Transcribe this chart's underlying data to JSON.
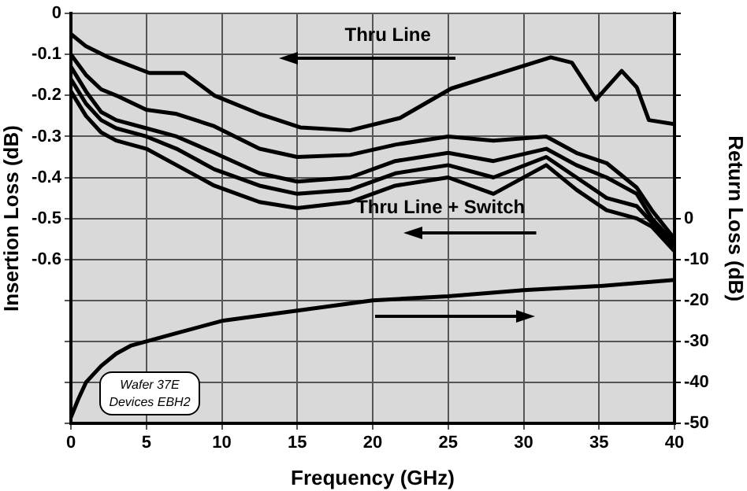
{
  "chart_data": {
    "type": "line",
    "xlabel": "Frequency (GHz)",
    "ylabel": "Insertion Loss (dB)",
    "y2label": "Return Loss (dB)",
    "xlim": [
      0,
      40
    ],
    "xticks": [
      0,
      5,
      10,
      15,
      20,
      25,
      30,
      35,
      40
    ],
    "ylim": [
      -1,
      0
    ],
    "yticks": [
      0,
      -0.1,
      -0.2,
      -0.3,
      -0.4,
      -0.5,
      -0.6,
      {
        "value": -0.7,
        "label": null
      },
      {
        "value": -0.8,
        "label": null
      },
      {
        "value": -0.9,
        "label": null
      },
      {
        "value": -1,
        "label": null
      }
    ],
    "y2lim": [
      -50,
      50
    ],
    "y2ticks": [
      {
        "value": 50,
        "label": null
      },
      {
        "value": 40,
        "label": null
      },
      {
        "value": 30,
        "label": null
      },
      {
        "value": 20,
        "label": null
      },
      {
        "value": 10,
        "label": null
      },
      0,
      -10,
      -20,
      -30,
      -40,
      -50
    ],
    "grid": true,
    "legend": false,
    "marker": "none",
    "line_style": "solid",
    "series": [
      {
        "color": "#000000",
        "x": [
          0,
          1,
          2.5,
          5.2,
          7.5,
          9.5,
          12.5,
          15.2,
          18.5,
          21.8,
          25.2,
          28.5,
          31.8,
          33.2,
          34.8,
          36.5,
          37.5,
          38.3,
          40
        ],
        "values": [
          -0.05,
          -0.08,
          -0.107,
          -0.145,
          -0.145,
          -0.2,
          -0.245,
          -0.278,
          -0.285,
          -0.255,
          -0.183,
          -0.145,
          -0.107,
          -0.12,
          -0.21,
          -0.14,
          -0.18,
          -0.26,
          -0.27
        ]
      },
      {
        "color": "#000000",
        "x": [
          0,
          1,
          2,
          3,
          5,
          7,
          9.5,
          12.5,
          15,
          18.5,
          21.5,
          25,
          28,
          31.5,
          33.5,
          35.5,
          37.5,
          38.5,
          40
        ],
        "values": [
          -0.1,
          -0.15,
          -0.185,
          -0.2,
          -0.235,
          -0.245,
          -0.275,
          -0.33,
          -0.35,
          -0.345,
          -0.32,
          -0.3,
          -0.31,
          -0.3,
          -0.34,
          -0.365,
          -0.425,
          -0.48,
          -0.55
        ]
      },
      {
        "color": "#000000",
        "x": [
          0,
          1,
          2,
          3,
          5,
          7,
          9.5,
          12.5,
          15,
          18.5,
          21.5,
          25,
          28,
          31.5,
          33.5,
          35.5,
          37.5,
          38.5,
          40
        ],
        "values": [
          -0.13,
          -0.19,
          -0.24,
          -0.26,
          -0.28,
          -0.3,
          -0.34,
          -0.39,
          -0.41,
          -0.4,
          -0.36,
          -0.34,
          -0.36,
          -0.33,
          -0.37,
          -0.4,
          -0.44,
          -0.5,
          -0.56
        ]
      },
      {
        "color": "#000000",
        "x": [
          0,
          1,
          2,
          3,
          5,
          7,
          9.5,
          12.5,
          15,
          18.5,
          21.5,
          25,
          28,
          31.5,
          33.5,
          35.5,
          37.5,
          38.5,
          40
        ],
        "values": [
          -0.16,
          -0.22,
          -0.26,
          -0.28,
          -0.3,
          -0.33,
          -0.38,
          -0.42,
          -0.44,
          -0.43,
          -0.39,
          -0.37,
          -0.4,
          -0.35,
          -0.4,
          -0.45,
          -0.47,
          -0.51,
          -0.57
        ]
      },
      {
        "color": "#000000",
        "x": [
          0,
          1,
          2,
          3,
          5,
          7,
          9.5,
          12.5,
          15,
          18.5,
          21.5,
          25,
          28,
          31.5,
          33.5,
          35.5,
          37.5,
          38.5,
          40
        ],
        "values": [
          -0.19,
          -0.25,
          -0.29,
          -0.31,
          -0.33,
          -0.37,
          -0.42,
          -0.46,
          -0.475,
          -0.46,
          -0.42,
          -0.4,
          -0.44,
          -0.37,
          -0.43,
          -0.48,
          -0.5,
          -0.52,
          -0.58
        ]
      },
      {
        "color": "#000000",
        "axis": "y2",
        "x": [
          0,
          0.5,
          1,
          2,
          3,
          4,
          5,
          7,
          10,
          15,
          20,
          25,
          30,
          35,
          40
        ],
        "values": [
          -48.5,
          -44,
          -40,
          -36,
          -33,
          -31,
          -30,
          -28,
          -25,
          -22.5,
          -20,
          -19,
          -17.5,
          -16.5,
          -15
        ]
      }
    ],
    "annotations": [
      "Thru Line",
      "Thru Line + Switch",
      "Wafer 37E\nDevices EBH2"
    ]
  }
}
